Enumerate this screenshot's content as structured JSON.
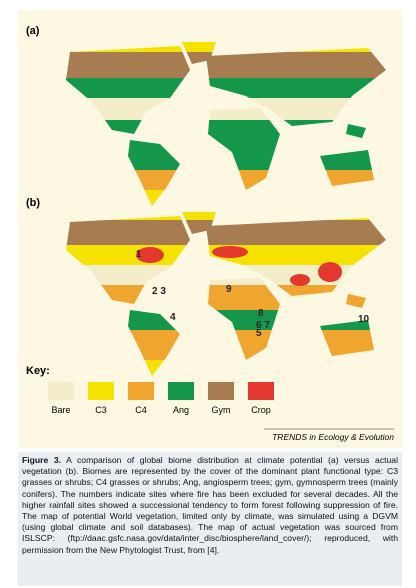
{
  "figure": {
    "panels": [
      {
        "label": "(a)"
      },
      {
        "label": "(b)",
        "site_labels": [
          "1",
          "2 3",
          "4",
          "5",
          "6 7",
          "8",
          "9",
          "10"
        ]
      }
    ],
    "key": {
      "title": "Key:",
      "items": [
        {
          "name": "Bare",
          "color": "#f4edc9"
        },
        {
          "name": "C3",
          "color": "#f6e200"
        },
        {
          "name": "C4",
          "color": "#efa52e"
        },
        {
          "name": "Ang",
          "color": "#14974a"
        },
        {
          "name": "Gym",
          "color": "#a67c50"
        },
        {
          "name": "Crop",
          "color": "#e2382d"
        }
      ]
    },
    "credit": "TRENDS in Ecology & Evolution"
  },
  "caption": {
    "label": "Figure 3.",
    "text": "A comparison of global biome distribution at climate potential (a) versus actual vegetation (b). Biomes are represented by the cover of the dominant plant functional type: C3 grasses or shrubs; C4 grasses or shrubs; Ang, angiosperm trees; gym, gymnosperm trees (mainly conifers). The numbers indicate sites where fire has been excluded for several decades. All the higher rainfall sites showed a successional tendency to form forest following suppression of fire. The map of potential World vegetation, limited only by climate, was simulated using a DGVM (using global climate and soil databases). The map of actual vegetation was sourced from ISLSCP: (ftp://daac.gsfc.nasa.gov/data/inter_disc/biosphere/land_cover/); reproduced, with permission from the New Phytologist Trust, from [4]."
  }
}
